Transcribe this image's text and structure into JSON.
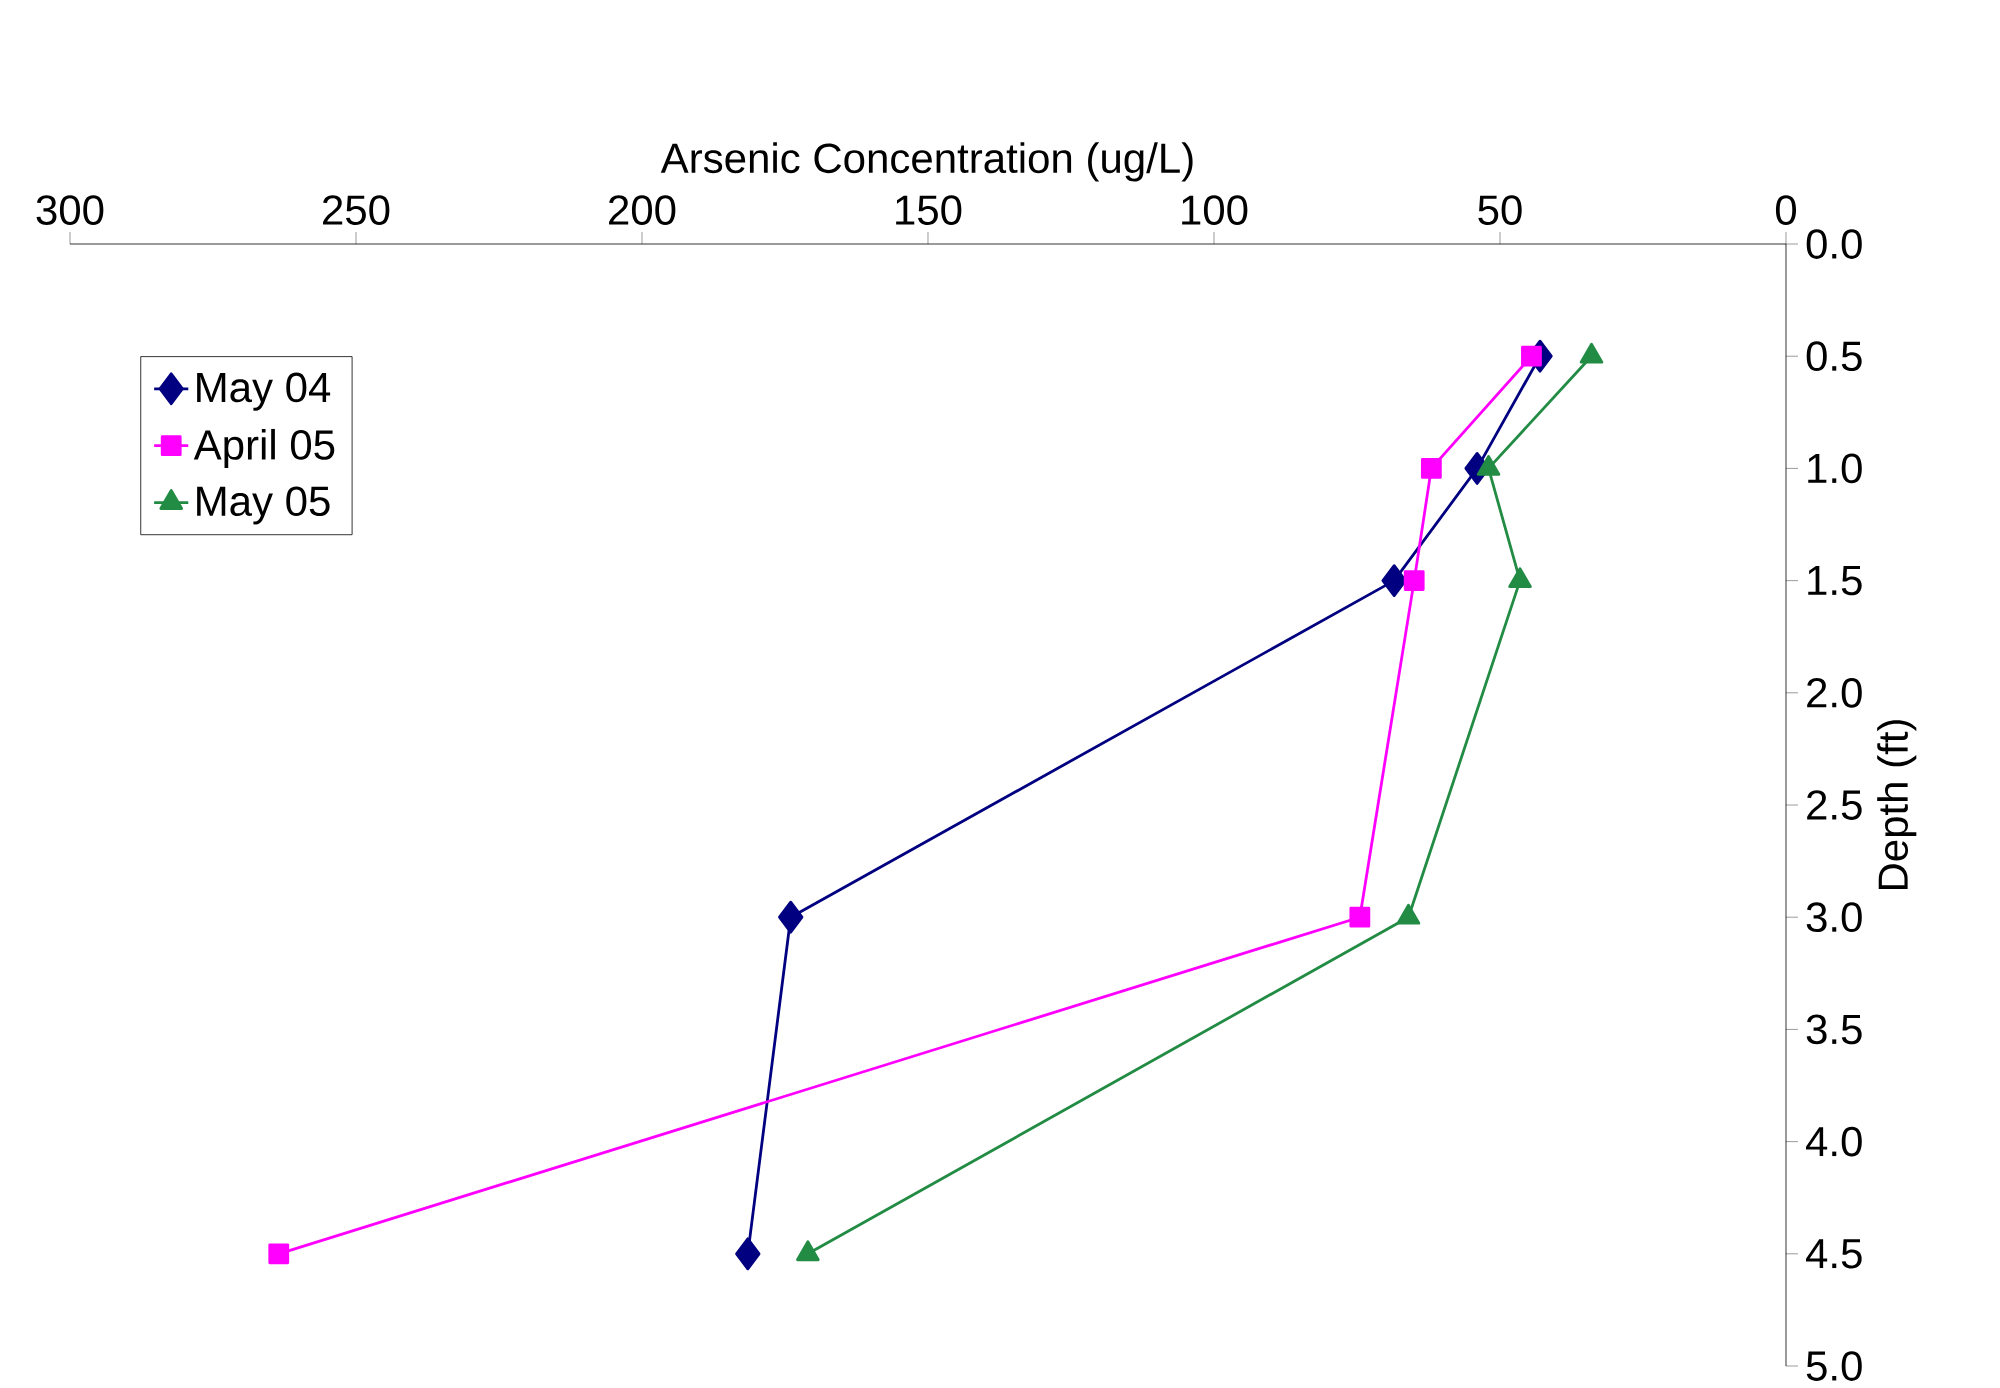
{
  "chart_data": {
    "type": "line",
    "xlabel": "Arsenic Concentration (ug/L)",
    "ylabel": "Depth (ft)",
    "xlim": [
      300,
      0
    ],
    "xticks": [
      300,
      250,
      200,
      150,
      100,
      50,
      0
    ],
    "ylim": [
      5,
      0
    ],
    "yticks": [
      {
        "value": 0,
        "label": "0.0"
      },
      {
        "value": 0.5,
        "label": "0.5"
      },
      {
        "value": 1,
        "label": "1.0"
      },
      {
        "value": 1.5,
        "label": "1.5"
      },
      {
        "value": 2,
        "label": "2.0"
      },
      {
        "value": 2.5,
        "label": "2.5"
      },
      {
        "value": 3,
        "label": "3.0"
      },
      {
        "value": 3.5,
        "label": "3.5"
      },
      {
        "value": 4,
        "label": "4.0"
      },
      {
        "value": 4.5,
        "label": "4.5"
      },
      {
        "value": 5,
        "label": "5.0"
      }
    ],
    "grid": false,
    "legend": "top left",
    "line_style": "solid",
    "series": [
      {
        "name": "May 04",
        "color": "#000080",
        "marker": "diamond",
        "x": [
          43,
          54,
          68.5,
          174,
          181.5
        ],
        "values": [
          0.5,
          1,
          1.5,
          3,
          4.5
        ]
      },
      {
        "name": "April 05",
        "color": "#ff00ff",
        "marker": "square",
        "x": [
          44.5,
          62,
          65,
          74.5,
          263.5
        ],
        "values": [
          0.5,
          1,
          1.5,
          3,
          4.5
        ]
      },
      {
        "name": "May 05",
        "color": "#228b44",
        "marker": "triangle",
        "x": [
          34,
          52,
          46.5,
          66,
          171
        ],
        "values": [
          0.5,
          1,
          1.5,
          3,
          4.5
        ]
      }
    ]
  }
}
